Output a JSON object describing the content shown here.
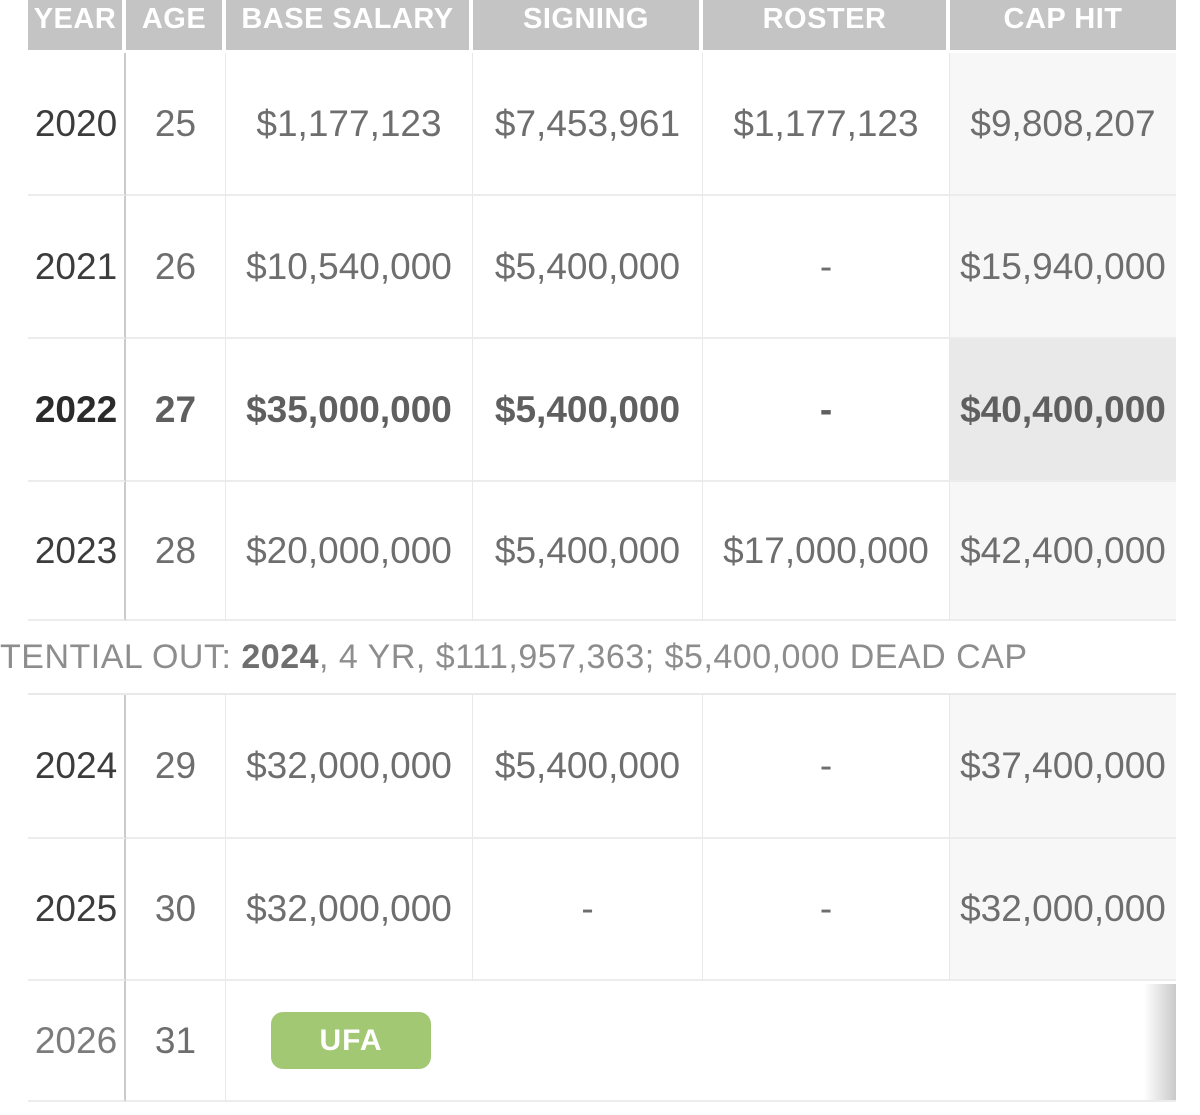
{
  "table": {
    "header_labels": [
      "YEAR",
      "AGE",
      "BASE SALARY",
      "SIGNING",
      "ROSTER",
      "CAP HIT"
    ],
    "rows": [
      {
        "year": "2020",
        "age": "25",
        "base": "$1,177,123",
        "signing": "$7,453,961",
        "roster": "$1,177,123",
        "cap": "$9,808,207",
        "bold": false
      },
      {
        "year": "2021",
        "age": "26",
        "base": "$10,540,000",
        "signing": "$5,400,000",
        "roster": "-",
        "cap": "$15,940,000",
        "bold": false
      },
      {
        "year": "2022",
        "age": "27",
        "base": "$35,000,000",
        "signing": "$5,400,000",
        "roster": "-",
        "cap": "$40,400,000",
        "bold": true
      },
      {
        "year": "2023",
        "age": "28",
        "base": "$20,000,000",
        "signing": "$5,400,000",
        "roster": "$17,000,000",
        "cap": "$42,400,000",
        "bold": false
      },
      {
        "year": "2024",
        "age": "29",
        "base": "$32,000,000",
        "signing": "$5,400,000",
        "roster": "-",
        "cap": "$37,400,000",
        "bold": false
      },
      {
        "year": "2025",
        "age": "30",
        "base": "$32,000,000",
        "signing": "-",
        "roster": "-",
        "cap": "$32,000,000",
        "bold": false
      },
      {
        "year": "2026",
        "age": "31",
        "badge": "UFA",
        "bold": false
      }
    ],
    "note": {
      "visible_prefix": "TENTIAL OUT: ",
      "year": "2024",
      "rest": ", 4 YR, $111,957,363; $5,400,000 DEAD CAP"
    }
  },
  "colors": {
    "header_bg": "#c4c4c4",
    "header_text": "#ffffff",
    "cap_hit_column_bg": "#f7f7f7",
    "cap_hit_highlight_bg": "#e9e9e9",
    "badge_green": "#a3c873",
    "text_gray": "#6e6e6e",
    "year_text": "#3c3c3c",
    "note_text": "#8d8d8d",
    "row_border": "#ececec"
  }
}
